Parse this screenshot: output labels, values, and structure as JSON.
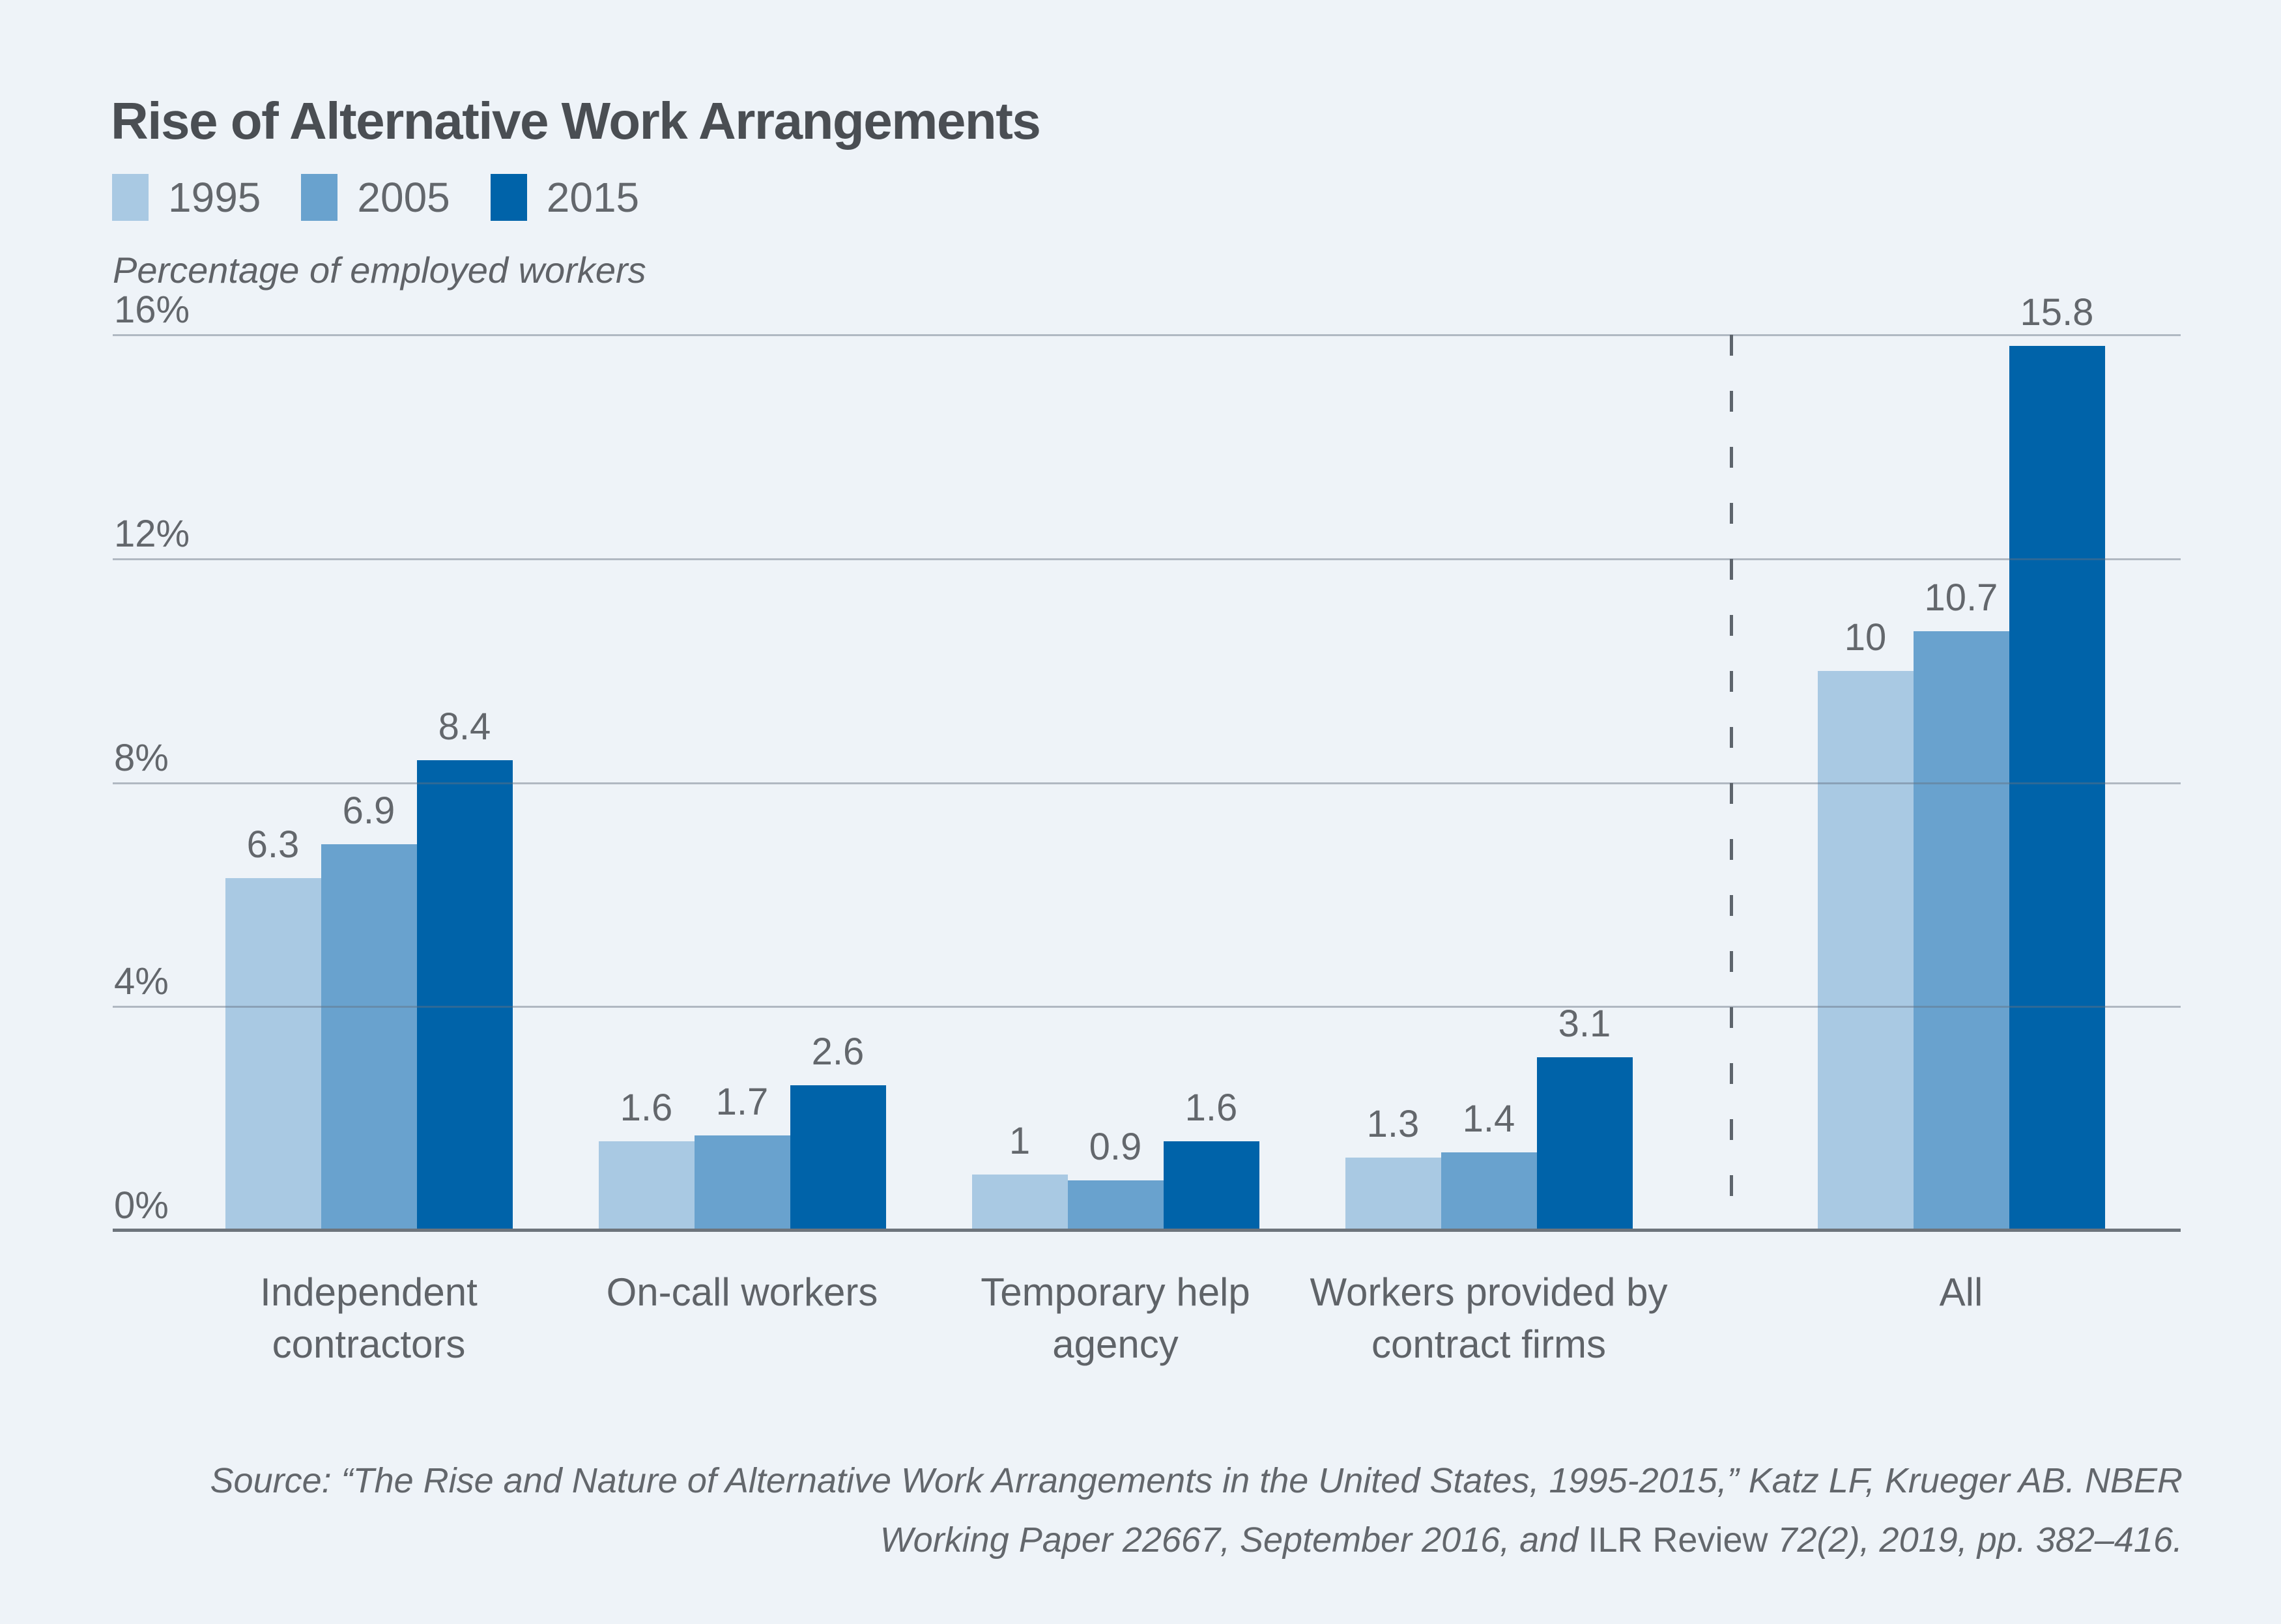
{
  "title": "Rise of Alternative Work Arrangements",
  "unit_note": "Percentage of employed workers",
  "colors": {
    "background": "#eef3f8",
    "bar_1995": "#a9c9e3",
    "bar_2005": "#69a2ce",
    "bar_2015": "#0063a9",
    "gridline": "#aab3bf",
    "axis": "#6d747c",
    "title_text": "#4a4e53",
    "label_text": "#63676c"
  },
  "legend": [
    {
      "label": "1995",
      "color": "#a9c9e3"
    },
    {
      "label": "2005",
      "color": "#69a2ce"
    },
    {
      "label": "2015",
      "color": "#0063a9"
    }
  ],
  "chart_data": {
    "type": "bar",
    "title": "Rise of Alternative Work Arrangements",
    "ylabel": "Percentage of employed workers",
    "ylim": [
      0,
      16
    ],
    "grid": true,
    "legend_position": "top-left",
    "yticks": [
      {
        "value": 16,
        "label": "16%"
      },
      {
        "value": 12,
        "label": "12%"
      },
      {
        "value": 8,
        "label": "8%"
      },
      {
        "value": 4,
        "label": "4%"
      },
      {
        "value": 0,
        "label": "0%"
      }
    ],
    "categories": [
      {
        "lines": [
          "Independent",
          "contractors"
        ]
      },
      {
        "lines": [
          "On-call workers"
        ]
      },
      {
        "lines": [
          "Temporary help",
          "agency"
        ]
      },
      {
        "lines": [
          "Workers provided by",
          "contract firms"
        ]
      },
      {
        "lines": [
          "All"
        ]
      }
    ],
    "divider_before_category_index": 4,
    "series": [
      {
        "name": "1995",
        "color": "#a9c9e3",
        "values": [
          6.3,
          1.6,
          1.0,
          1.3,
          10.0
        ],
        "value_labels": [
          "6.3",
          "1.6",
          "1",
          "1.3",
          "10"
        ]
      },
      {
        "name": "2005",
        "color": "#69a2ce",
        "values": [
          6.9,
          1.7,
          0.9,
          1.4,
          10.7
        ],
        "value_labels": [
          "6.9",
          "1.7",
          "0.9",
          "1.4",
          "10.7"
        ]
      },
      {
        "name": "2015",
        "color": "#0063a9",
        "values": [
          8.4,
          2.6,
          1.6,
          3.1,
          15.8
        ],
        "value_labels": [
          "8.4",
          "2.6",
          "1.6",
          "3.1",
          "15.8"
        ]
      }
    ]
  },
  "source": {
    "line1": "Source: “The Rise and Nature of Alternative Work Arrangements in the United States, 1995-2015,” Katz LF, Krueger AB. NBER",
    "line2_pre": "Working Paper 22667, September 2016, and ",
    "line2_journal": "ILR Review",
    "line2_post": " 72(2), 2019, pp. 382–416."
  }
}
